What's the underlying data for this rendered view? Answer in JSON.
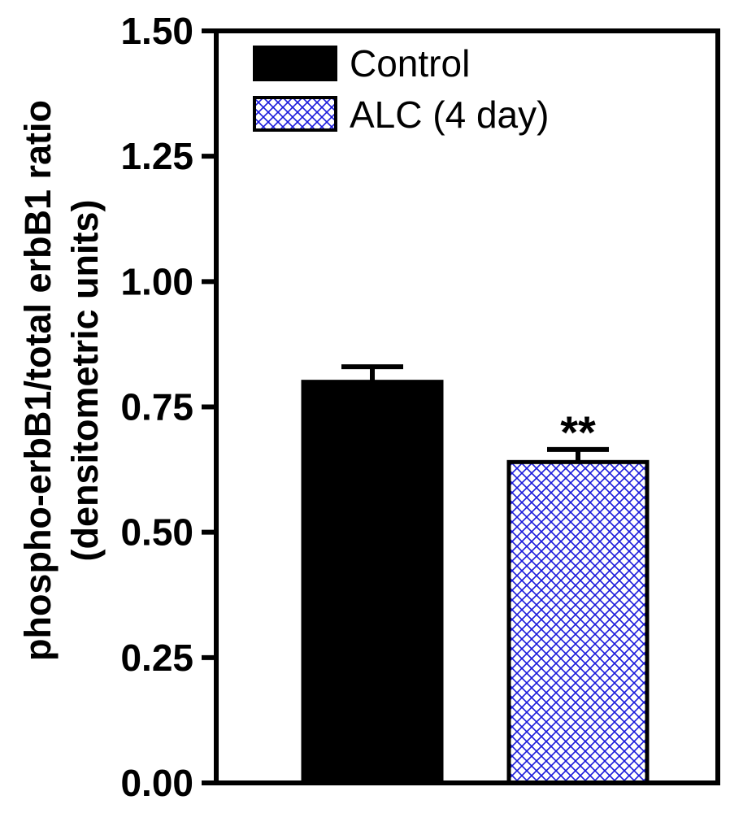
{
  "chart_data": {
    "type": "bar",
    "title": "",
    "xlabel": "",
    "ylabel_line1": "phospho-erbB1/total erbB1 ratio",
    "ylabel_line2": "(densitometric units)",
    "ylim": [
      0,
      1.5
    ],
    "yticks": [
      "0.00",
      "0.25",
      "0.50",
      "0.75",
      "1.00",
      "1.25",
      "1.50"
    ],
    "categories": [
      "Control",
      "ALC (4 day)"
    ],
    "series": [
      {
        "name": "Control",
        "value": 0.8,
        "error": 0.03,
        "fill": "#000000",
        "pattern": "solid"
      },
      {
        "name": "ALC (4 day)",
        "value": 0.64,
        "error": 0.025,
        "fill": "#1a1adb",
        "pattern": "crosshatch",
        "annotation": "**"
      }
    ],
    "legend": {
      "position": "top-left",
      "entries": [
        "Control",
        "ALC (4 day)"
      ]
    }
  }
}
